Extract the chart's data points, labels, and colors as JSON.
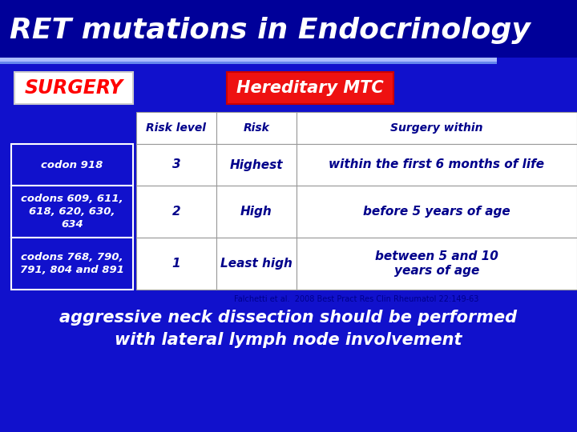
{
  "title": "RET mutations in Endocrinology",
  "title_color": "#FFFFFF",
  "title_fontsize": 26,
  "bg_color": "#1111CC",
  "title_bar_color": "#000099",
  "surgery_label": "SURGERY",
  "surgery_label_color": "#FF0000",
  "surgery_box_bg": "#FFFFFF",
  "surgery_box_border": "#CCCCCC",
  "hereditary_label": "Hereditary MTC",
  "hereditary_label_color": "#FFFFFF",
  "hereditary_box_bg": "#EE1111",
  "table_header": [
    "Risk level",
    "Risk",
    "Surgery within"
  ],
  "table_rows": [
    [
      "3",
      "Highest",
      "within the first 6 months of life"
    ],
    [
      "2",
      "High",
      "before 5 years of age"
    ],
    [
      "1",
      "Least high",
      "between 5 and 10\nyears of age"
    ]
  ],
  "row_labels": [
    "codon 918",
    "codons 609, 611,\n618, 620, 630,\n634",
    "codons 768, 790,\n791, 804 and 891"
  ],
  "table_text_color": "#00008B",
  "row_label_color": "#FFFFFF",
  "row_label_box_bg": "#1111CC",
  "row_label_box_border": "#FFFFFF",
  "citation": "Falchetti et al.  2008 Best Pract Res Clin Rheumatol 22:149-63",
  "citation_color": "#00008B",
  "bottom_text_line1": "aggressive neck dissection should be performed",
  "bottom_text_line2": "with lateral lymph node involvement",
  "bottom_text_color": "#FFFFFF",
  "accent_line1_color": "#AABBFF",
  "accent_line2_color": "#6688EE",
  "table_bg": "#FFFFFF",
  "table_border": "#999999"
}
